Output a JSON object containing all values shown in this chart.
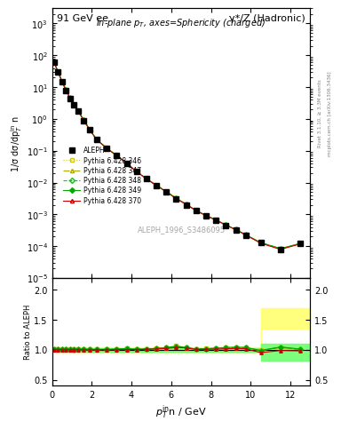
{
  "title_left": "91 GeV ee",
  "title_right": "γ*/Z (Hadronic)",
  "plot_title": "In-plane p$_T$, axes=Sphericity (charged)",
  "xlabel": "p$_T^{\\rm in}$n / GeV",
  "ylabel_main": "1/σ dσ/dp$_T^{\\rm in}$ n",
  "ylabel_ratio": "Ratio to ALEPH",
  "watermark": "ALEPH_1996_S3486095",
  "rivet_text": "Rivet 3.1.10, ≥ 3.3M events",
  "mcplots_text": "mcplots.cern.ch [arXiv:1306.3436]",
  "aleph_x": [
    0.1,
    0.3,
    0.5,
    0.7,
    0.9,
    1.1,
    1.3,
    1.6,
    1.9,
    2.25,
    2.75,
    3.25,
    3.75,
    4.25,
    4.75,
    5.25,
    5.75,
    6.25,
    6.75,
    7.25,
    7.75,
    8.25,
    8.75,
    9.25,
    9.75,
    10.5,
    11.5,
    12.5
  ],
  "aleph_y": [
    60.0,
    30.0,
    15.0,
    8.0,
    4.5,
    2.8,
    1.8,
    0.9,
    0.45,
    0.22,
    0.12,
    0.07,
    0.04,
    0.022,
    0.013,
    0.008,
    0.005,
    0.003,
    0.002,
    0.0013,
    0.0009,
    0.00065,
    0.00045,
    0.00032,
    0.00022,
    0.00013,
    8e-05,
    0.00012
  ],
  "aleph_yerr": [
    3.0,
    1.5,
    0.75,
    0.4,
    0.23,
    0.14,
    0.09,
    0.045,
    0.023,
    0.011,
    0.006,
    0.0035,
    0.002,
    0.0011,
    0.00065,
    0.0004,
    0.00025,
    0.00015,
    0.0001,
    6.5e-05,
    4.5e-05,
    3.25e-05,
    2.25e-05,
    1.6e-05,
    1.1e-05,
    6.5e-06,
    4e-06,
    6e-06
  ],
  "pythia_x": [
    0.1,
    0.3,
    0.5,
    0.7,
    0.9,
    1.1,
    1.3,
    1.6,
    1.9,
    2.25,
    2.75,
    3.25,
    3.75,
    4.25,
    4.75,
    5.25,
    5.75,
    6.25,
    6.75,
    7.25,
    7.75,
    8.25,
    8.75,
    9.25,
    9.75,
    10.5,
    11.5,
    12.5
  ],
  "pythia346_y": [
    61.0,
    30.5,
    15.2,
    8.1,
    4.55,
    2.82,
    1.82,
    0.91,
    0.455,
    0.222,
    0.121,
    0.071,
    0.041,
    0.0222,
    0.0132,
    0.0082,
    0.0052,
    0.0032,
    0.00208,
    0.00132,
    0.00092,
    0.00067,
    0.00047,
    0.000334,
    0.000229,
    0.000129,
    8.4e-05,
    0.000122
  ],
  "pythia347_y": [
    60.5,
    30.2,
    15.1,
    8.05,
    4.52,
    2.81,
    1.81,
    0.905,
    0.452,
    0.221,
    0.1205,
    0.0705,
    0.0405,
    0.02215,
    0.01315,
    0.00815,
    0.00515,
    0.00315,
    0.00207,
    0.00131,
    0.00091,
    0.00066,
    0.00046,
    0.000332,
    0.000227,
    0.000128,
    8.3e-05,
    0.00012
  ],
  "pythia348_y": [
    60.8,
    30.4,
    15.15,
    8.08,
    4.53,
    2.815,
    1.815,
    0.908,
    0.453,
    0.2215,
    0.1208,
    0.0708,
    0.0408,
    0.02218,
    0.01318,
    0.00818,
    0.00518,
    0.00318,
    0.002075,
    0.001315,
    0.000915,
    0.000665,
    0.000465,
    0.000333,
    0.000228,
    0.0001285,
    8.35e-05,
    0.000121
  ],
  "pythia349_y": [
    60.9,
    30.45,
    15.18,
    8.09,
    4.54,
    2.818,
    1.818,
    0.909,
    0.454,
    0.2218,
    0.1209,
    0.0709,
    0.0409,
    0.02219,
    0.01319,
    0.00819,
    0.00519,
    0.00319,
    0.002078,
    0.001318,
    0.000918,
    0.000668,
    0.000468,
    0.000334,
    0.000229,
    0.0001288,
    8.38e-05,
    0.0001215
  ],
  "pythia370_y": [
    60.2,
    30.1,
    15.05,
    8.02,
    4.51,
    2.805,
    1.805,
    0.902,
    0.451,
    0.2205,
    0.1202,
    0.0702,
    0.0402,
    0.02212,
    0.01312,
    0.00812,
    0.00512,
    0.00312,
    0.002065,
    0.001308,
    0.000908,
    0.000658,
    0.000458,
    0.000328,
    0.000224,
    0.000124,
    7.9e-05,
    0.000118
  ],
  "ratio346_y": [
    1.017,
    1.017,
    1.013,
    1.013,
    1.011,
    1.007,
    1.011,
    1.011,
    1.011,
    1.009,
    1.008,
    1.014,
    1.025,
    1.009,
    1.015,
    1.025,
    1.04,
    1.067,
    1.04,
    1.015,
    1.022,
    1.031,
    1.044,
    1.044,
    1.041,
    0.992,
    1.05,
    1.017
  ],
  "ratio347_y": [
    1.008,
    1.007,
    1.007,
    1.006,
    1.004,
    1.004,
    1.006,
    1.006,
    1.004,
    1.005,
    1.004,
    1.007,
    1.013,
    1.005,
    1.012,
    1.019,
    1.03,
    1.05,
    1.035,
    1.008,
    1.011,
    1.023,
    1.022,
    1.038,
    1.032,
    0.985,
    1.038,
    1.0
  ],
  "ratio348_y": [
    1.013,
    1.013,
    1.01,
    1.01,
    1.007,
    1.005,
    1.008,
    1.009,
    1.007,
    1.007,
    1.007,
    1.01,
    1.02,
    1.008,
    1.013,
    1.023,
    1.036,
    1.06,
    1.038,
    1.012,
    1.017,
    1.025,
    1.033,
    1.041,
    1.036,
    0.988,
    1.044,
    1.008
  ],
  "ratio349_y": [
    1.015,
    1.015,
    1.012,
    1.011,
    1.009,
    1.006,
    1.01,
    1.01,
    1.009,
    1.008,
    1.008,
    1.013,
    1.023,
    1.009,
    1.015,
    1.024,
    1.038,
    1.063,
    1.039,
    1.013,
    1.02,
    1.028,
    1.04,
    1.044,
    1.041,
    0.99,
    1.048,
    1.013
  ],
  "ratio370_y": [
    1.003,
    1.003,
    1.003,
    1.003,
    1.002,
    1.002,
    1.003,
    1.002,
    1.002,
    1.002,
    1.002,
    1.003,
    1.005,
    1.005,
    1.008,
    1.015,
    1.024,
    1.04,
    1.033,
    1.006,
    1.009,
    1.012,
    1.018,
    1.025,
    1.018,
    0.954,
    0.988,
    0.983
  ],
  "color346": "#cccc00",
  "color347": "#aaaa00",
  "color348": "#00cc00",
  "color349": "#00aa00",
  "color370": "#cc0000",
  "aleph_color": "#000000",
  "bg_color": "#ffffff",
  "plot_bg": "#ffffff",
  "ratio_band_yellow": "#ffff66",
  "ratio_band_green": "#66ff66",
  "band346_lo": [
    0.95,
    0.95,
    0.95,
    0.95,
    0.95,
    0.95,
    0.95,
    0.95,
    0.95,
    0.95,
    0.95,
    0.95,
    0.95,
    0.95,
    0.95,
    0.95,
    0.95,
    0.95,
    0.95,
    0.95,
    0.95,
    0.95,
    0.95,
    0.95,
    0.95,
    1.35,
    1.35,
    1.35
  ],
  "band346_hi": [
    1.05,
    1.05,
    1.05,
    1.05,
    1.05,
    1.05,
    1.05,
    1.05,
    1.05,
    1.05,
    1.05,
    1.05,
    1.05,
    1.05,
    1.05,
    1.05,
    1.05,
    1.05,
    1.05,
    1.05,
    1.05,
    1.05,
    1.05,
    1.05,
    1.05,
    1.7,
    1.7,
    1.7
  ],
  "band349_lo": [
    0.97,
    0.97,
    0.97,
    0.97,
    0.97,
    0.97,
    0.97,
    0.97,
    0.97,
    0.97,
    0.97,
    0.97,
    0.97,
    0.97,
    0.97,
    0.97,
    0.97,
    0.97,
    0.97,
    0.97,
    0.97,
    0.97,
    0.97,
    0.97,
    0.97,
    0.82,
    0.82,
    0.82
  ],
  "band349_hi": [
    1.03,
    1.03,
    1.03,
    1.03,
    1.03,
    1.03,
    1.03,
    1.03,
    1.03,
    1.03,
    1.03,
    1.03,
    1.03,
    1.03,
    1.03,
    1.03,
    1.03,
    1.03,
    1.03,
    1.03,
    1.03,
    1.03,
    1.03,
    1.03,
    1.03,
    1.1,
    1.1,
    1.1
  ],
  "xlim": [
    0,
    13
  ],
  "ylim_main": [
    1e-05,
    3000.0
  ],
  "ylim_ratio": [
    0.4,
    2.2
  ]
}
